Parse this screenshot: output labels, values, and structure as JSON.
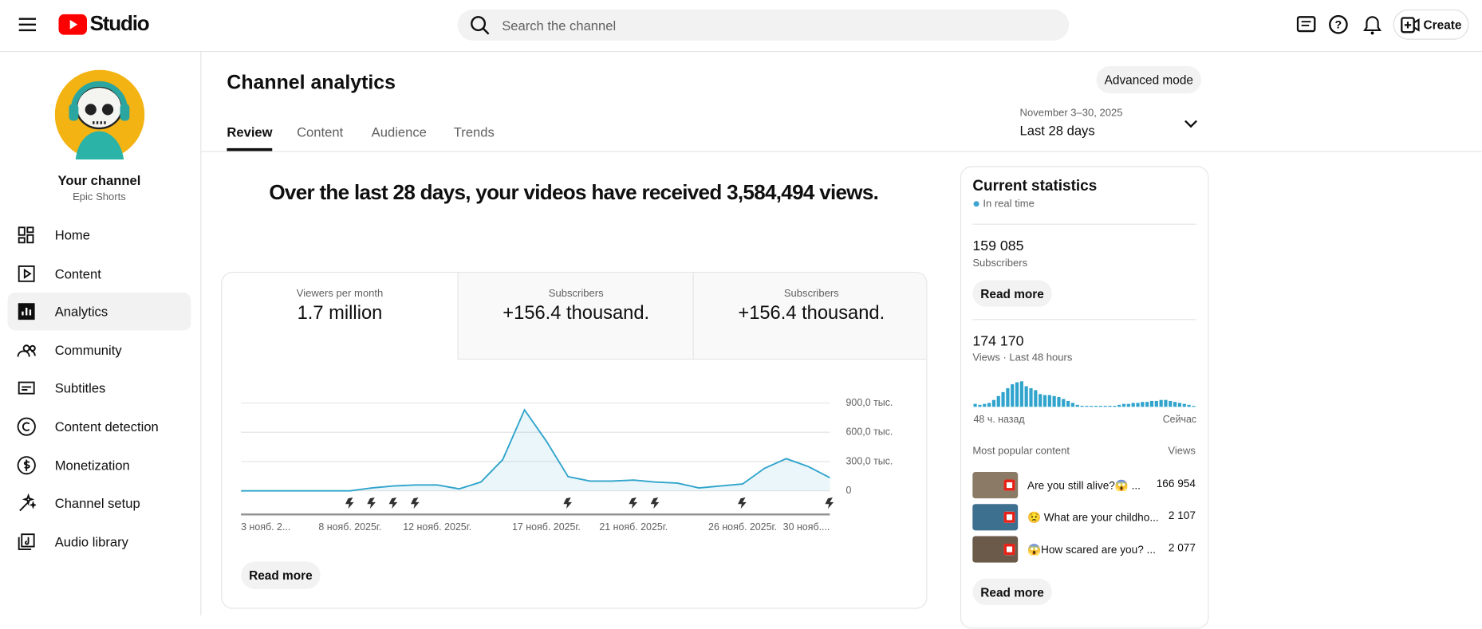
{
  "header": {
    "logo": "Studio",
    "search_placeholder": "Search the channel",
    "create": "Create"
  },
  "sidebar": {
    "channel_name": "Your channel",
    "channel_handle": "Epic Shorts",
    "nav": [
      "Home",
      "Content",
      "Analytics",
      "Community",
      "Subtitles",
      "Content detection",
      "Monetization",
      "Channel setup",
      "Audio library"
    ],
    "active": 2
  },
  "page": {
    "title": "Channel analytics",
    "advanced_mode": "Advanced mode",
    "date_range": "November 3–30, 2025",
    "period": "Last 28 days",
    "tabs": [
      "Review",
      "Content",
      "Audience",
      "Trends"
    ],
    "active_tab": 0,
    "headline": "Over the last 28 days, your videos have received 3,584,494 views.",
    "metrics": [
      {
        "label": "Viewers per month",
        "value": "1.7 million"
      },
      {
        "label": "Subscribers",
        "value": "+156.4 thousand."
      },
      {
        "label": "Subscribers",
        "value": "+156.4 thousand."
      }
    ],
    "read_more": "Read more"
  },
  "stats": {
    "title": "Current statistics",
    "realtime": "In real time",
    "subscribers": {
      "value": "159 085",
      "label": "Subscribers"
    },
    "read_more": "Read more",
    "views": {
      "value": "174 170",
      "label": "Views · Last 48 hours"
    },
    "popular": {
      "title": "Most popular content",
      "views_header": "Views",
      "rows": [
        {
          "title": "Are you still alive?😱 ...",
          "views": "166 954"
        },
        {
          "title": "😟 What are your childho...",
          "views": "2 107"
        },
        {
          "title": "😱How scared are you? ...",
          "views": "2 077"
        }
      ]
    },
    "read_more_2": "Read more"
  },
  "chart_data": [
    {
      "type": "line",
      "color": "#30a4cc",
      "grid": true,
      "categories": [
        "3 нояб. 2...",
        null,
        null,
        null,
        null,
        "8 нояб. 2025г.",
        null,
        null,
        null,
        "12 нояб. 2025г.",
        null,
        null,
        null,
        null,
        "17 нояб. 2025г.",
        null,
        null,
        null,
        "21 нояб. 2025г.",
        null,
        null,
        null,
        null,
        "26 нояб. 2025г.",
        null,
        null,
        null,
        "30 нояб...."
      ],
      "values": [
        0,
        0,
        0,
        0,
        0,
        0,
        30000,
        50000,
        60000,
        60000,
        20000,
        90000,
        320000,
        830000,
        510000,
        145000,
        100000,
        100000,
        110000,
        90000,
        80000,
        30000,
        50000,
        70000,
        230000,
        330000,
        250000,
        135000
      ],
      "ylim": [
        0,
        900000
      ],
      "yticks": [
        0,
        {
          "value": 300000,
          "label": "300,0 тыс."
        },
        {
          "value": 600000,
          "label": "600,0 тыс."
        },
        {
          "value": 900000,
          "label": "900,0 тыс."
        }
      ]
    },
    {
      "type": "bar",
      "color": "#30a4cc",
      "categories": [
        "48 ч. назад",
        null,
        null,
        null,
        null,
        null,
        null,
        null,
        null,
        null,
        null,
        null,
        null,
        null,
        null,
        null,
        null,
        null,
        null,
        null,
        null,
        null,
        null,
        null,
        null,
        null,
        null,
        null,
        null,
        null,
        null,
        null,
        null,
        null,
        null,
        null,
        null,
        null,
        null,
        null,
        null,
        null,
        null,
        null,
        null,
        null,
        null,
        "Сейчас"
      ],
      "values": [
        3,
        2,
        3,
        4,
        7,
        11,
        15,
        19,
        23,
        25,
        26,
        21,
        19,
        17,
        13,
        12,
        12,
        11,
        10,
        8,
        6,
        4,
        2,
        1,
        1,
        1,
        1,
        1,
        1,
        1,
        1,
        2,
        3,
        3,
        4,
        4,
        5,
        5,
        6,
        6,
        7,
        7,
        6,
        5,
        4,
        3,
        2,
        1
      ],
      "ylim": [
        0,
        26
      ]
    }
  ]
}
